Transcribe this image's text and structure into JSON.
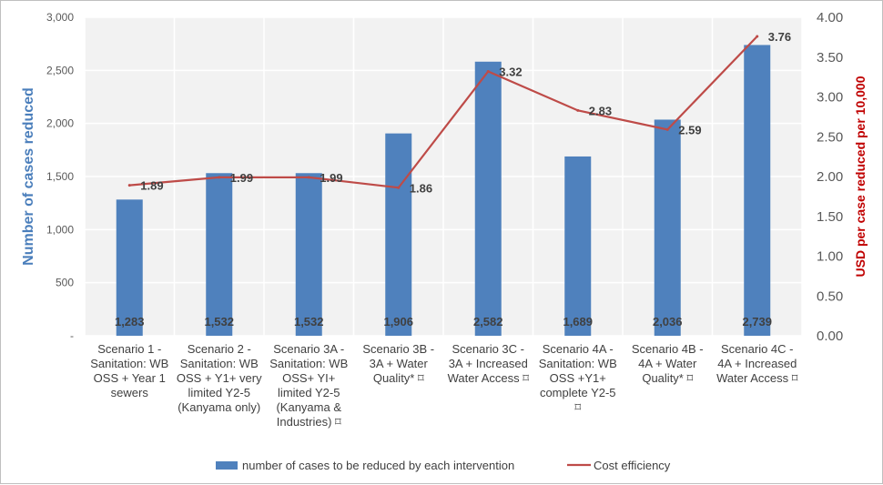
{
  "chart_data": {
    "type": "bar",
    "categories": [
      [
        "Scenario 1 -",
        "Sanitation: WB",
        "OSS + Year 1",
        "sewers"
      ],
      [
        "Scenario 2 -",
        "Sanitation: WB",
        "OSS + Y1+ very",
        "limited Y2-5",
        "(Kanyama only)"
      ],
      [
        "Scenario 3A -",
        "Sanitation: WB",
        "OSS+ YI+",
        "limited Y2-5",
        "(Kanyama &",
        "Industries) ⌑"
      ],
      [
        "Scenario 3B -",
        "3A + Water",
        "Quality* ⌑"
      ],
      [
        "Scenario 3C -",
        "3A + Increased",
        "Water Access ⌑"
      ],
      [
        "Scenario 4A -",
        "Sanitation: WB",
        "OSS +Y1+",
        "complete Y2-5",
        "⌑"
      ],
      [
        "Scenario 4B -",
        "4A + Water",
        "Quality* ⌑"
      ],
      [
        "Scenario 4C -",
        "4A + Increased",
        "Water Access ⌑"
      ]
    ],
    "series": [
      {
        "name": "number of cases to be reduced by each intervention",
        "type": "bar",
        "axis": "left",
        "values": [
          1283,
          1532,
          1532,
          1906,
          2582,
          1689,
          2036,
          2739
        ],
        "labels": [
          "1,283",
          "1,532",
          "1,532",
          "1,906",
          "2,582",
          "1,689",
          "2,036",
          "2,739"
        ],
        "color": "#4f81bd"
      },
      {
        "name": "Cost efficiency",
        "type": "line",
        "axis": "right",
        "values": [
          1.89,
          1.99,
          1.99,
          1.86,
          3.32,
          2.83,
          2.59,
          3.76
        ],
        "labels": [
          "1.89",
          "1.99",
          "1.99",
          "1.86",
          "3.32",
          "2.83",
          "2.59",
          "3.76"
        ],
        "color": "#be4b48"
      }
    ],
    "ylabel": "Number of cases reduced",
    "y2label": "USD per case reduced per 10,000",
    "ylim": [
      0,
      3000
    ],
    "y2lim": [
      0,
      4
    ],
    "y_ticks": [
      "-",
      "500",
      "1,000",
      "1,500",
      "2,000",
      "2,500",
      "3,000"
    ],
    "y2_ticks": [
      "0.00",
      "0.50",
      "1.00",
      "1.50",
      "2.00",
      "2.50",
      "3.00",
      "3.50",
      "4.00"
    ],
    "grid": true,
    "legend_position": "bottom",
    "axis_colors": {
      "left": "#4a7ebb",
      "right": "#c00000"
    }
  }
}
